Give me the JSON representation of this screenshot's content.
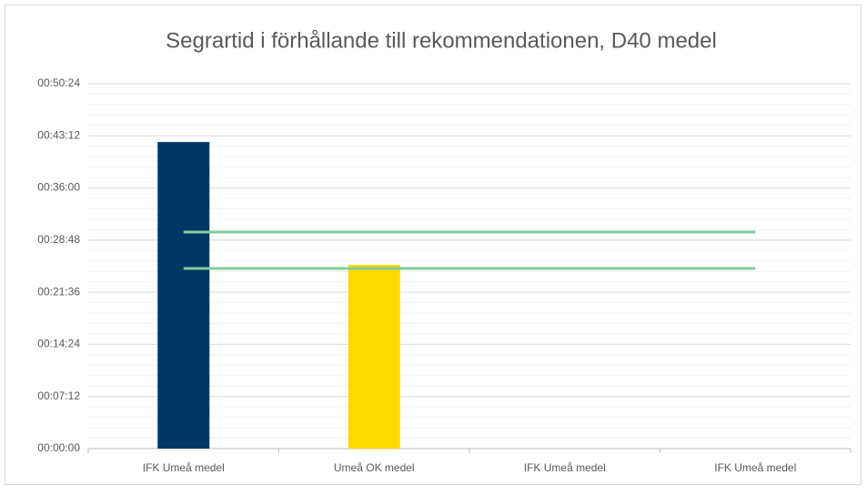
{
  "chart_data": {
    "type": "bar",
    "title": "Segrartid i förhållande till rekommendationen, D40 medel",
    "categories": [
      "IFK Umeå medel",
      "Umeå OK medel",
      "IFK Umeå medel",
      "IFK Umeå medel"
    ],
    "series": [
      {
        "type": "bar",
        "colors": [
          "#003865",
          "#ffda00",
          null,
          null
        ],
        "values": [
          2541,
          1523,
          null,
          null
        ]
      },
      {
        "type": "line",
        "color": "#82cc98",
        "values": [
          1795,
          1795,
          1795,
          1795
        ]
      },
      {
        "type": "line",
        "color": "#82cc98",
        "values": [
          1493,
          1493,
          1493,
          1493
        ]
      }
    ],
    "ylim": [
      0,
      3024
    ],
    "yticks": [
      {
        "value": 0,
        "label": "00:00:00"
      },
      {
        "value": 432,
        "label": "00:07:12"
      },
      {
        "value": 864,
        "label": "00:14:24"
      },
      {
        "value": 1296,
        "label": "00:21:36"
      },
      {
        "value": 1728,
        "label": "00:28:48"
      },
      {
        "value": 2160,
        "label": "00:36:00"
      },
      {
        "value": 2592,
        "label": "00:43:12"
      },
      {
        "value": 3024,
        "label": "00:50:24"
      }
    ],
    "yticks_minor": [
      86.4,
      172.8,
      259.2,
      345.6,
      518.4,
      604.8,
      691.2,
      777.6,
      950.4,
      1036.8,
      1123.2,
      1209.6,
      1382.4,
      1468.8,
      1555.2,
      1641.6,
      1814.4,
      1900.8,
      1987.2,
      2073.6,
      2246.4,
      2332.8,
      2419.2,
      2505.6,
      2678.4,
      2764.8,
      2851.2,
      2937.6
    ],
    "grid": true
  }
}
